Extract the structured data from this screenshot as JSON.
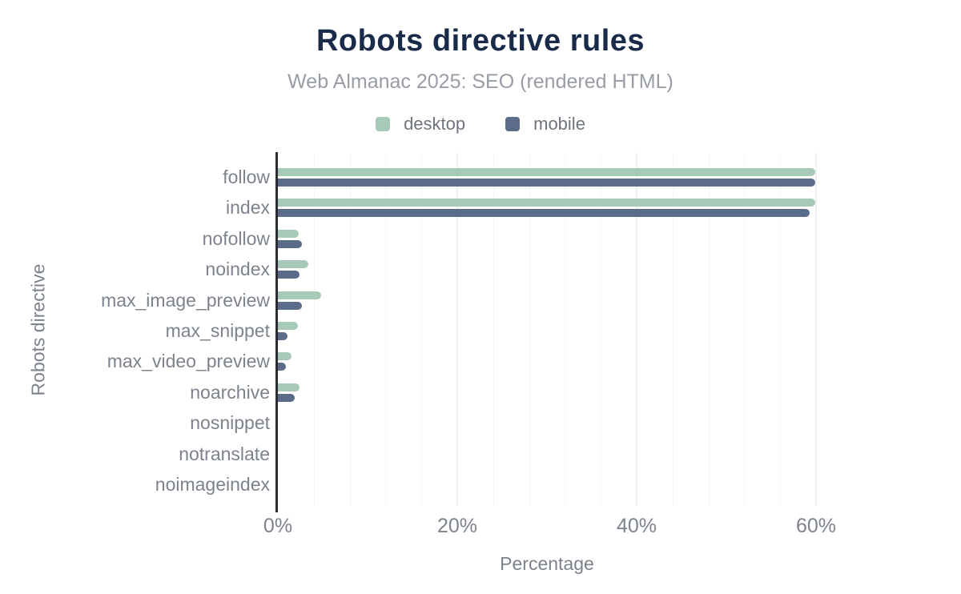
{
  "header": {
    "title": "Robots directive rules",
    "subtitle": "Web Almanac 2025: SEO (rendered HTML)"
  },
  "colors": {
    "title_navy": "#1a2b49",
    "desktop_green": "#a6cab7",
    "mobile_slate": "#5a6c89",
    "axis_line": "#2b2d31",
    "label_gray": "#7d838c",
    "gridline_minor": "#f5f6f8",
    "gridline_major": "#edeff2"
  },
  "chart_data": {
    "type": "bar",
    "orientation": "horizontal",
    "title": "Robots directive rules",
    "subtitle": "Web Almanac 2025: SEO (rendered HTML)",
    "xlabel": "Percentage",
    "ylabel": "Robots directive",
    "xlim": [
      0,
      60
    ],
    "x_tick_values": [
      0,
      20,
      40,
      60
    ],
    "x_tick_labels": [
      "0%",
      "20%",
      "40%",
      "60%"
    ],
    "minor_grid_step": 4,
    "grid": true,
    "legend_position": "top",
    "categories": [
      "follow",
      "index",
      "nofollow",
      "noindex",
      "max_image_preview",
      "max_snippet",
      "max_video_preview",
      "noarchive",
      "nosnippet",
      "notranslate",
      "noimageindex"
    ],
    "series": [
      {
        "name": "desktop",
        "color": "#a6cab7",
        "values": [
          59.9,
          59.9,
          2.3,
          3.4,
          4.8,
          2.2,
          1.5,
          2.4,
          0,
          0,
          0
        ]
      },
      {
        "name": "mobile",
        "color": "#5a6c89",
        "values": [
          59.9,
          59.3,
          2.7,
          2.4,
          2.7,
          1.1,
          0.9,
          1.9,
          0,
          0,
          0
        ]
      }
    ]
  }
}
